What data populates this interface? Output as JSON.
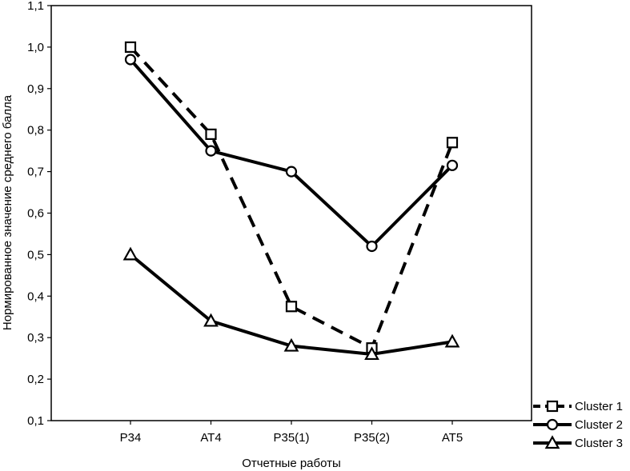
{
  "chart_data": {
    "type": "line",
    "title": "",
    "xlabel": "Отчетные работы",
    "ylabel": "Нормированное значение среднего балла",
    "categories": [
      "Р34",
      "АТ4",
      "Р35(1)",
      "Р35(2)",
      "АТ5"
    ],
    "ylim": [
      0.1,
      1.1
    ],
    "yticks": [
      "0,1",
      "0,2",
      "0,3",
      "0,4",
      "0,5",
      "0,6",
      "0,7",
      "0,8",
      "0,9",
      "1,0",
      "1,1"
    ],
    "ytick_values": [
      0.1,
      0.2,
      0.3,
      0.4,
      0.5,
      0.6,
      0.7,
      0.8,
      0.9,
      1.0,
      1.1
    ],
    "grid": false,
    "legend_position": "bottom-right",
    "series": [
      {
        "name": "Cluster 1",
        "values": [
          1.0,
          0.79,
          0.375,
          0.275,
          0.77
        ],
        "line_style": "dashed",
        "marker": "square"
      },
      {
        "name": "Cluster 2",
        "values": [
          0.97,
          0.75,
          0.7,
          0.52,
          0.715
        ],
        "line_style": "solid",
        "marker": "circle"
      },
      {
        "name": "Cluster 3",
        "values": [
          0.5,
          0.34,
          0.28,
          0.26,
          0.29
        ],
        "line_style": "solid",
        "marker": "triangle"
      }
    ]
  }
}
